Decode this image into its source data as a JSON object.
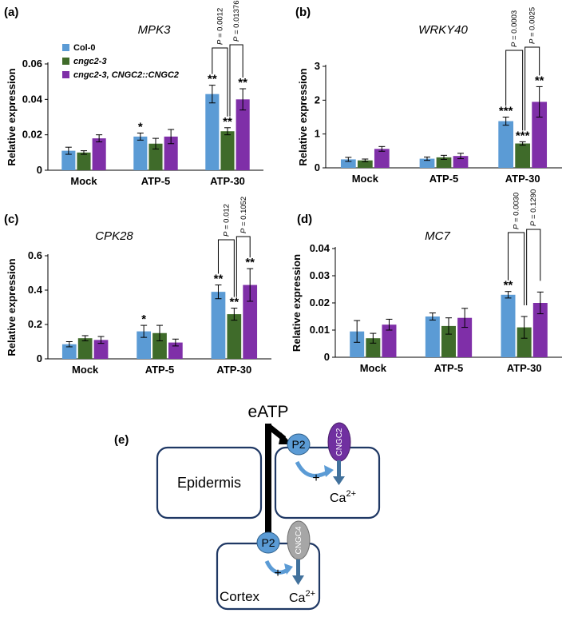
{
  "colors": {
    "col0": "#5B9BD5",
    "cngc2_3": "#3F6B2A",
    "complement": "#7F2FA8",
    "cell_border": "#1F3864",
    "p2": "#5B9BD5",
    "cngc2_channel": "#7030A0",
    "cngc4_channel": "#A6A6A6",
    "curved_arrow": "#5B9BD5",
    "ca_arrow": "#41719C"
  },
  "legend": {
    "items": [
      "Col-0",
      "cngc2-3",
      "cngc2-3, CNGC2::CNGC2"
    ]
  },
  "chart_data": [
    {
      "type": "bar",
      "panel_label": "(a)",
      "title": "MPK3",
      "ylabel": "Relative expression",
      "ylim": [
        0,
        0.06
      ],
      "yticks": [
        "0",
        "0.02",
        "0.04",
        "0.06"
      ],
      "ytick_values": [
        0,
        0.02,
        0.04,
        0.06
      ],
      "categories": [
        "Mock",
        "ATP-5",
        "ATP-30"
      ],
      "series": [
        {
          "name": "Col-0",
          "values": [
            0.011,
            0.019,
            0.043
          ],
          "errors": [
            0.002,
            0.002,
            0.005
          ],
          "stars": [
            "",
            "*",
            "**"
          ]
        },
        {
          "name": "cngc2-3",
          "values": [
            0.01,
            0.015,
            0.022
          ],
          "errors": [
            0.001,
            0.003,
            0.002
          ],
          "stars": [
            "",
            "",
            "**"
          ]
        },
        {
          "name": "cngc2-3, CNGC2::CNGC2",
          "values": [
            0.018,
            0.019,
            0.04
          ],
          "errors": [
            0.002,
            0.004,
            0.006
          ],
          "stars": [
            "",
            "",
            "**"
          ]
        }
      ],
      "pvalues": [
        "P = 0.0012",
        "P = 0.01376"
      ]
    },
    {
      "type": "bar",
      "panel_label": "(b)",
      "title": "WRKY40",
      "ylabel": "Relative expression",
      "ylim": [
        0,
        3
      ],
      "yticks": [
        "0",
        "1",
        "2",
        "3"
      ],
      "ytick_values": [
        0,
        1,
        2,
        3
      ],
      "categories": [
        "Mock",
        "ATP-5",
        "ATP-30"
      ],
      "series": [
        {
          "name": "Col-0",
          "values": [
            0.25,
            0.27,
            1.38
          ],
          "errors": [
            0.06,
            0.05,
            0.12
          ],
          "stars": [
            "",
            "",
            "***"
          ]
        },
        {
          "name": "cngc2-3",
          "values": [
            0.22,
            0.31,
            0.72
          ],
          "errors": [
            0.04,
            0.06,
            0.05
          ],
          "stars": [
            "",
            "",
            "***"
          ]
        },
        {
          "name": "cngc2-3, CNGC2::CNGC2",
          "values": [
            0.56,
            0.35,
            1.95
          ],
          "errors": [
            0.07,
            0.08,
            0.45
          ],
          "stars": [
            "",
            "",
            "**"
          ]
        }
      ],
      "pvalues": [
        "P = 0.0003",
        "P = 0.0025"
      ]
    },
    {
      "type": "bar",
      "panel_label": "(c)",
      "title": "CPK28",
      "ylabel": "Relative expression",
      "ylim": [
        0,
        0.6
      ],
      "yticks": [
        "0",
        "0.2",
        "0.4",
        "0.6"
      ],
      "ytick_values": [
        0,
        0.2,
        0.4,
        0.6
      ],
      "categories": [
        "Mock",
        "ATP-5",
        "ATP-30"
      ],
      "series": [
        {
          "name": "Col-0",
          "values": [
            0.085,
            0.16,
            0.39
          ],
          "errors": [
            0.015,
            0.035,
            0.04
          ],
          "stars": [
            "",
            "*",
            "**"
          ]
        },
        {
          "name": "cngc2-3",
          "values": [
            0.12,
            0.15,
            0.26
          ],
          "errors": [
            0.015,
            0.045,
            0.035
          ],
          "stars": [
            "",
            "",
            "**"
          ]
        },
        {
          "name": "cngc2-3, CNGC2::CNGC2",
          "values": [
            0.11,
            0.095,
            0.43
          ],
          "errors": [
            0.02,
            0.02,
            0.095
          ],
          "stars": [
            "",
            "",
            "**"
          ]
        }
      ],
      "pvalues": [
        "P = 0.012",
        "P = 0.1052"
      ]
    },
    {
      "type": "bar",
      "panel_label": "(d)",
      "title": "MC7",
      "ylabel": "Relative expression",
      "ylim": [
        0,
        0.04
      ],
      "yticks": [
        "0",
        "0.01",
        "0.02",
        "0.03",
        "0.04"
      ],
      "ytick_values": [
        0,
        0.01,
        0.02,
        0.03,
        0.04
      ],
      "categories": [
        "Mock",
        "ATP-5",
        "ATP-30"
      ],
      "series": [
        {
          "name": "Col-0",
          "values": [
            0.0095,
            0.015,
            0.023
          ],
          "errors": [
            0.004,
            0.0013,
            0.0012
          ],
          "stars": [
            "",
            "",
            "**"
          ]
        },
        {
          "name": "cngc2-3",
          "values": [
            0.007,
            0.0115,
            0.011
          ],
          "errors": [
            0.0018,
            0.003,
            0.004
          ],
          "stars": [
            "",
            "",
            ""
          ]
        },
        {
          "name": "cngc2-3, CNGC2::CNGC2",
          "values": [
            0.012,
            0.0145,
            0.02
          ],
          "errors": [
            0.002,
            0.0035,
            0.004
          ],
          "stars": [
            "",
            "",
            ""
          ]
        }
      ],
      "pvalues": [
        "P = 0.0030",
        "P = 0.1290"
      ]
    }
  ],
  "diagram": {
    "panel_label": "(e)",
    "signal": "eATP",
    "epidermis_label": "Epidermis",
    "cortex_label": "Cortex",
    "receptor": "P2",
    "channel_top": "CNGC2",
    "channel_bottom": "CNGC4",
    "plus": "+",
    "ion": "Ca",
    "ion_charge": "2+"
  }
}
